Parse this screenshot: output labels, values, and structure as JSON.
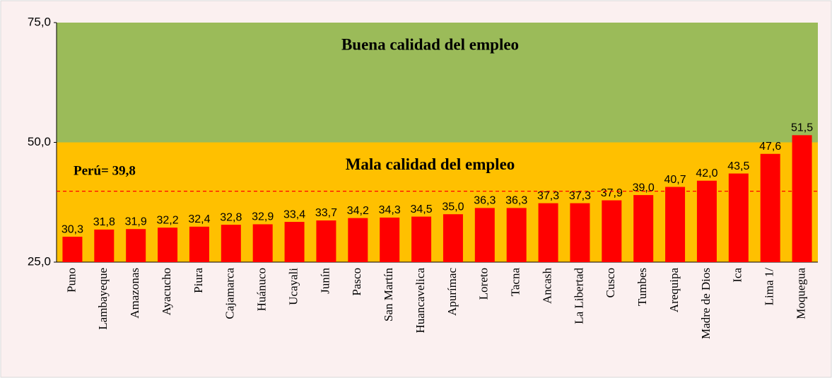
{
  "chart_data": {
    "type": "bar",
    "categories": [
      "Puno",
      "Lambayeque",
      "Amazonas",
      "Ayacucho",
      "Piura",
      "Cajamarca",
      "Huánuco",
      "Ucayali",
      "Junín",
      "Pasco",
      "San Martín",
      "Huancavelica",
      "Apurímac",
      "Loreto",
      "Tacna",
      "Ancash",
      "La Libertad",
      "Cusco",
      "Tumbes",
      "Arequipa",
      "Madre de Dios",
      "Ica",
      "Lima 1/",
      "Moquegua"
    ],
    "values": [
      30.3,
      31.8,
      31.9,
      32.2,
      32.4,
      32.8,
      32.9,
      33.4,
      33.7,
      34.2,
      34.3,
      34.5,
      35.0,
      36.3,
      36.3,
      37.3,
      37.3,
      37.9,
      39.0,
      40.7,
      42.0,
      43.5,
      47.6,
      51.5
    ],
    "value_labels": [
      "30,3",
      "31,8",
      "31,9",
      "32,2",
      "32,4",
      "32,8",
      "32,9",
      "33,4",
      "33,7",
      "34,2",
      "34,3",
      "34,5",
      "35,0",
      "36,3",
      "36,3",
      "37,3",
      "37,3",
      "37,9",
      "39,0",
      "40,7",
      "42,0",
      "43,5",
      "47,6",
      "51,5"
    ],
    "color": "#ff0000",
    "ylim": [
      25,
      75
    ],
    "yticks": [
      {
        "value": 25,
        "label": "25,0"
      },
      {
        "value": 50,
        "label": "50,0"
      },
      {
        "value": 75,
        "label": "75,0"
      }
    ],
    "bands": [
      {
        "label": "Buena calidad del empleo",
        "range": [
          50,
          75
        ],
        "color": "#9bbb59",
        "text_color": "#4f6228"
      },
      {
        "label": "Mala calidad del empleo",
        "range": [
          25,
          50
        ],
        "color": "#ffc000",
        "text_color": "#e0801a"
      }
    ],
    "reference": {
      "label": "Perú= 39,8",
      "value": 39.8,
      "color": "#ff0000"
    }
  }
}
